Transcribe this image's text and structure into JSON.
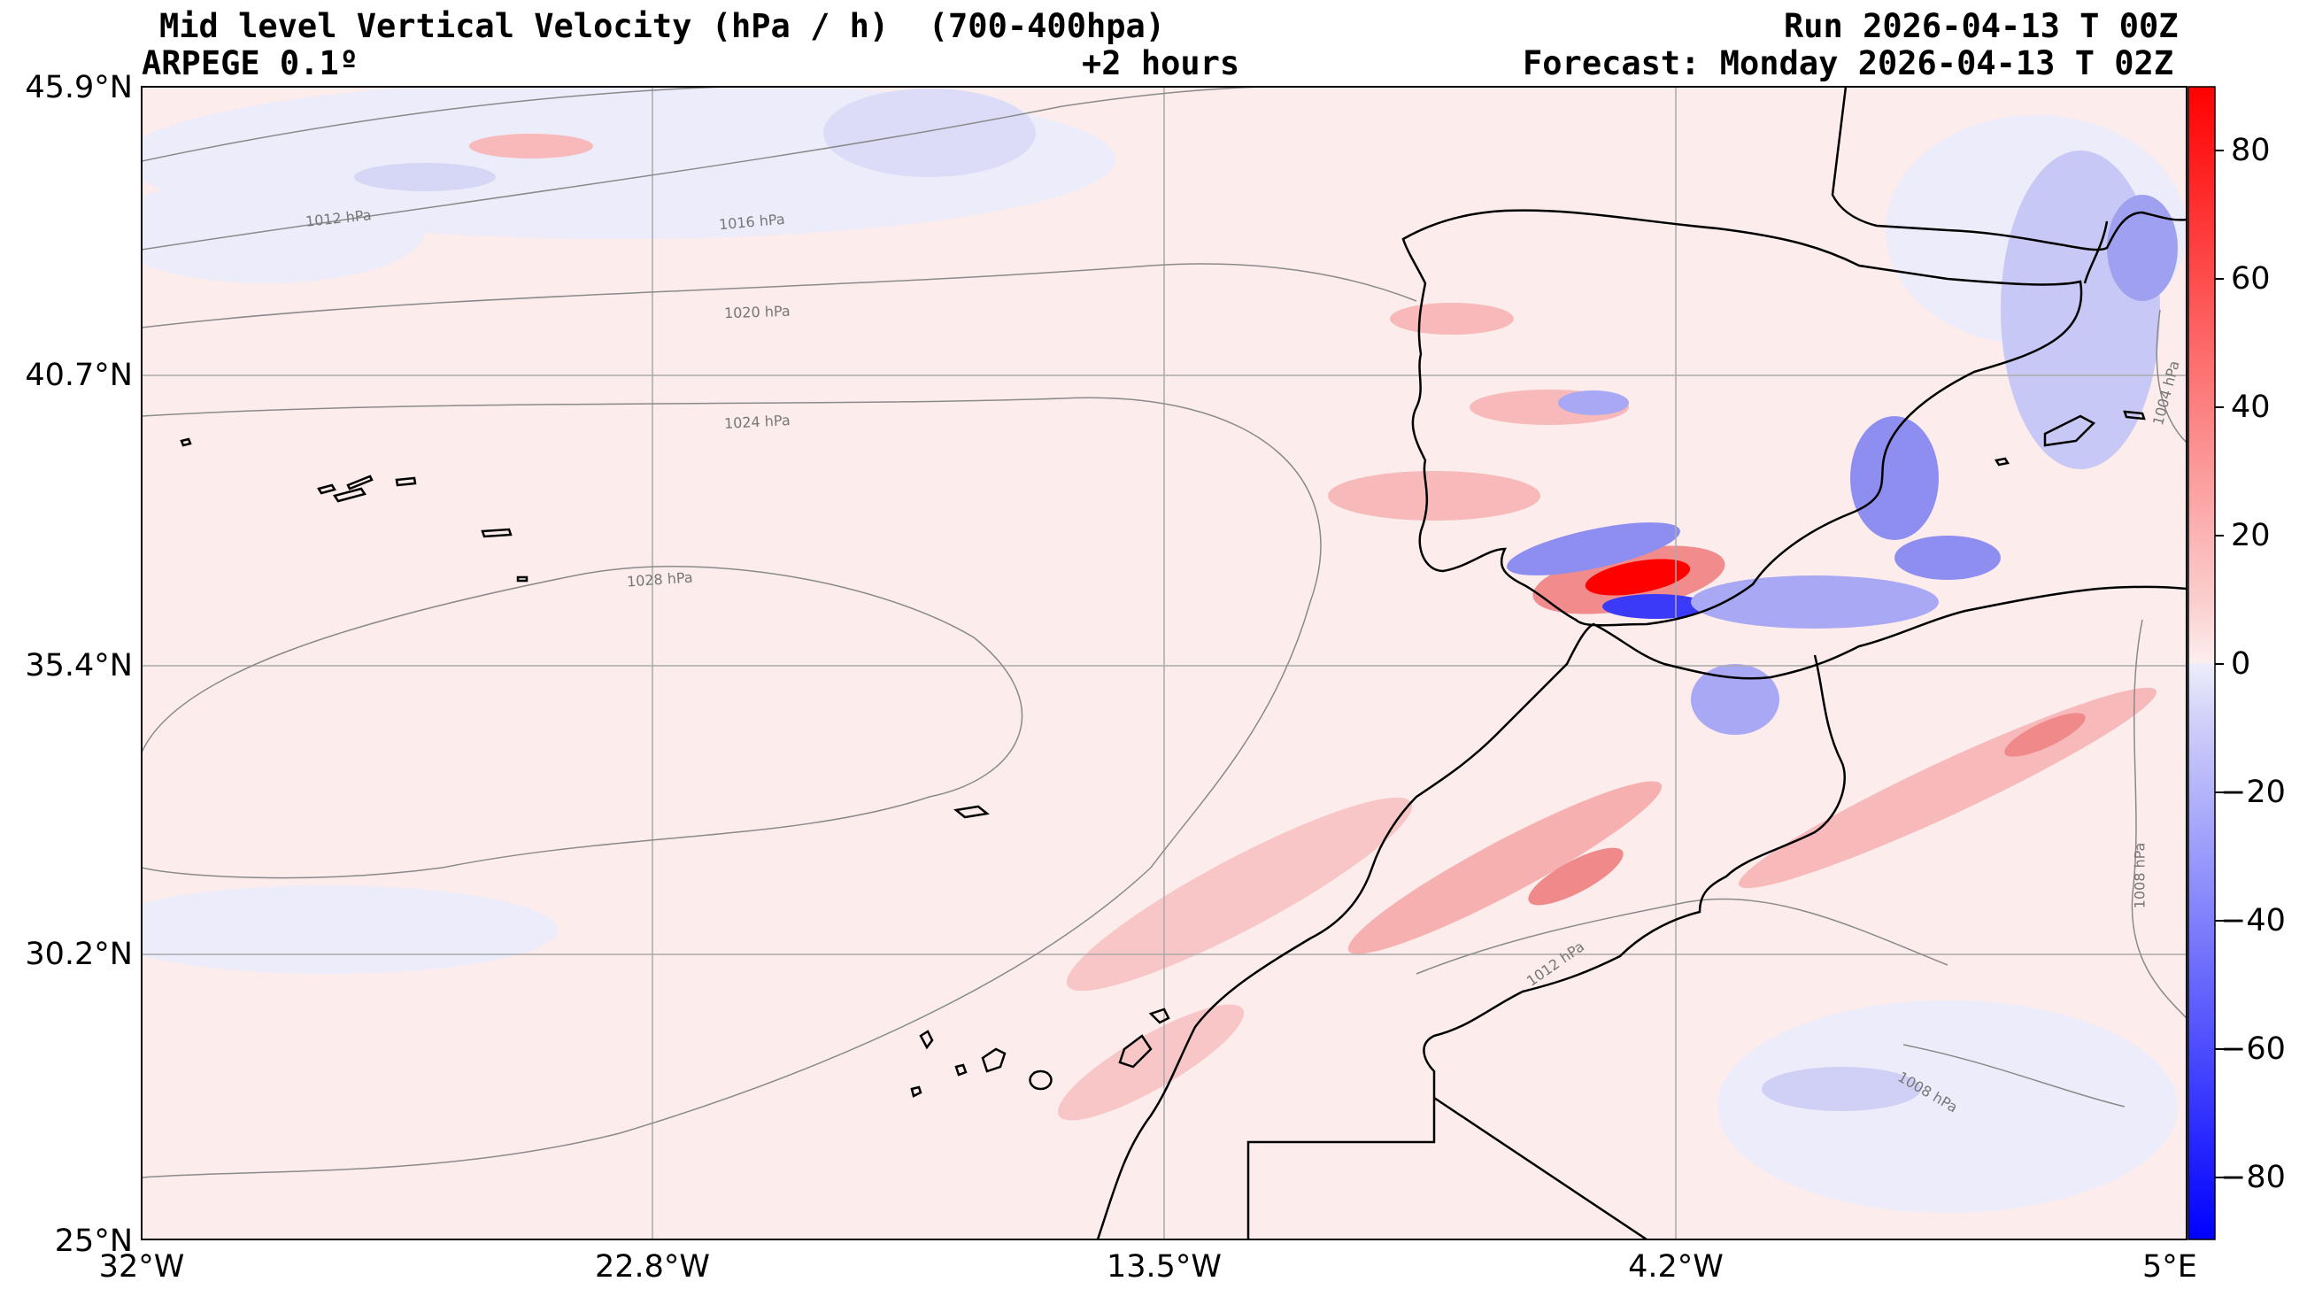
{
  "header": {
    "title": "Mid level Vertical Velocity (hPa / h)  (700-400hpa)",
    "model": "ARPEGE 0.1º",
    "lead": "+2 hours",
    "run": "Run 2026-04-13 T 00Z",
    "forecast": "Forecast: Monday 2026-04-13 T 02Z"
  },
  "axes": {
    "lat_labels": [
      "45.9°N",
      "40.7°N",
      "35.4°N",
      "30.2°N",
      "25°N"
    ],
    "lon_labels": [
      "32°W",
      "22.8°W",
      "13.5°W",
      "4.2°W",
      "5°E"
    ]
  },
  "isobar_labels": [
    "1012 hPa",
    "1016 hPa",
    "1020 hPa",
    "1024 hPa",
    "1028 hPa",
    "1012 hPa",
    "1008 hPa",
    "1008 hPa",
    "1004 hPa"
  ],
  "colorbar": {
    "labels": [
      "80",
      "60",
      "40",
      "20",
      "0",
      "−20",
      "−40",
      "−60",
      "−80"
    ],
    "min": -90,
    "max": 90,
    "colors": {
      "strong_up_red": "#ff0000",
      "weak_red": "#fde8e8",
      "weak_blue": "#ebebfc",
      "strong_blue": "#0000ff"
    }
  }
}
